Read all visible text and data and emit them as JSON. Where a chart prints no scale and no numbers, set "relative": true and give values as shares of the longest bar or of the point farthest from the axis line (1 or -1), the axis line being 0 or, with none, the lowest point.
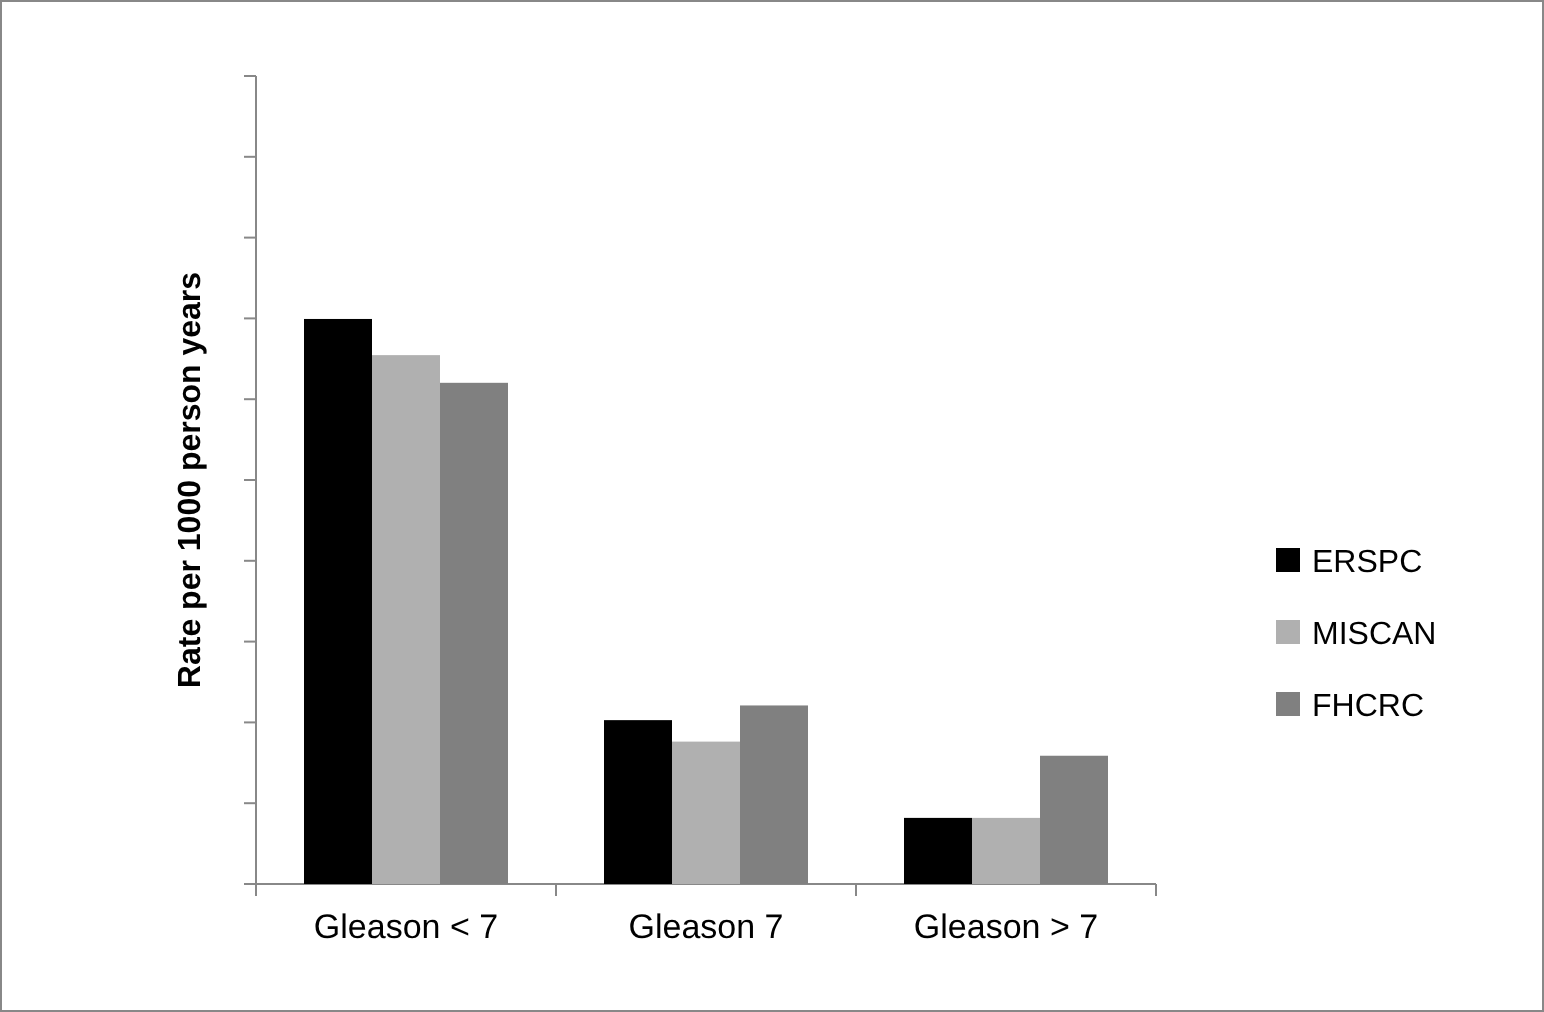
{
  "chart_data": {
    "type": "bar",
    "relative": true,
    "ylabel": "Rate per 1000 person years",
    "categories": [
      "Gleason < 7",
      "Gleason 7",
      "Gleason > 7"
    ],
    "legend": "right",
    "series": [
      {
        "name": "ERSPC",
        "color": "#000000",
        "values": [
          1,
          0.29,
          0.117
        ]
      },
      {
        "name": "MISCAN",
        "color": "#b0b0b0",
        "values": [
          0.936,
          0.252,
          0.117
        ]
      },
      {
        "name": "FHCRC",
        "color": "#808080",
        "values": [
          0.887,
          0.316,
          0.227
        ]
      }
    ]
  }
}
